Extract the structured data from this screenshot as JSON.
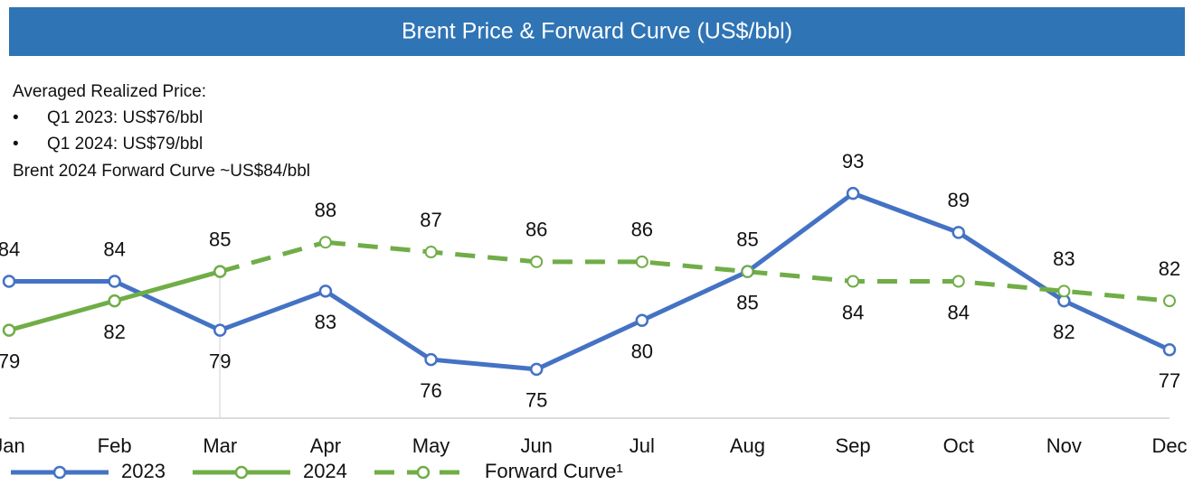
{
  "chart_data": {
    "type": "line",
    "title": "Brent Price & Forward Curve (US$/bbl)",
    "notes": [
      "Averaged Realized Price:",
      "Q1 2023: US$76/bbl",
      "Q1 2024: US$79/bbl",
      "Brent 2024 Forward Curve ~US$84/bbl"
    ],
    "categories": [
      "Jan",
      "Feb",
      "Mar",
      "Apr",
      "May",
      "Jun",
      "Jul",
      "Aug",
      "Sep",
      "Oct",
      "Nov",
      "Dec"
    ],
    "series": [
      {
        "name": "2023",
        "color": "#4472c4",
        "dashed": false,
        "values": [
          84,
          84,
          79,
          83,
          76,
          75,
          80,
          85,
          93,
          89,
          82,
          77
        ]
      },
      {
        "name": "2024",
        "color": "#70ad47",
        "dashed": false,
        "values": [
          79,
          82,
          85,
          null,
          null,
          null,
          null,
          null,
          null,
          null,
          null,
          null
        ]
      },
      {
        "name": "Forward Curve¹",
        "color": "#70ad47",
        "dashed": true,
        "values": [
          null,
          null,
          null,
          88,
          87,
          86,
          86,
          85,
          84,
          84,
          83,
          82
        ]
      }
    ],
    "ylim": [
      70,
      98
    ],
    "legend": "bottom-left"
  }
}
